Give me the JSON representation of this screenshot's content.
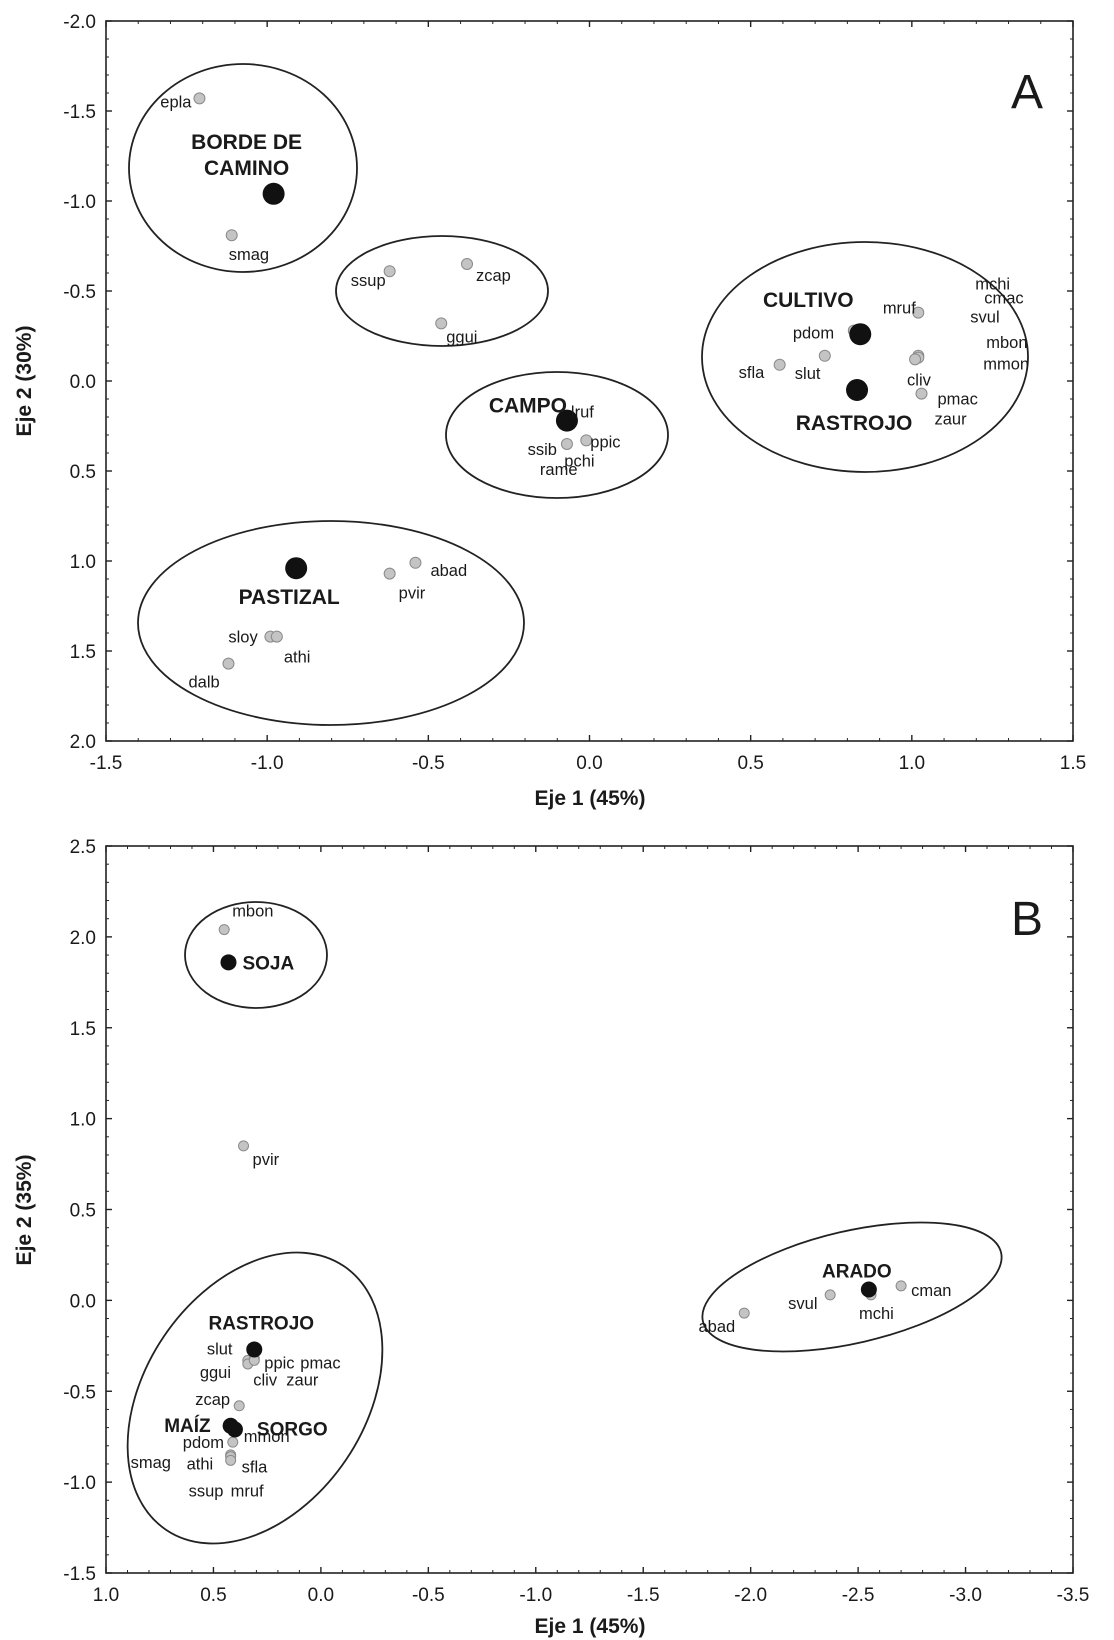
{
  "chart_data": [
    {
      "type": "scatter",
      "panel": "A",
      "xlabel": "Eje 1 (45%)",
      "ylabel": "Eje 2 (30%)",
      "xlim": [
        -1.5,
        1.5
      ],
      "ylim": [
        2.0,
        -2.0
      ],
      "y_axis_reversed": true,
      "x_ticks": [
        "-1.5",
        "-1.0",
        "-0.5",
        "0.0",
        "0.5",
        "1.0",
        "1.5"
      ],
      "y_ticks": [
        "-2.0",
        "-1.5",
        "-1.0",
        "-0.5",
        "0.0",
        "0.5",
        "1.0",
        "1.5",
        "2.0"
      ],
      "groups": [
        {
          "label": "BORDE DE CAMINO",
          "x": -0.98,
          "y": -1.04
        },
        {
          "label": "CAMPO",
          "x": -0.07,
          "y": 0.22
        },
        {
          "label": "CULTIVO",
          "x": 0.84,
          "y": -0.26
        },
        {
          "label": "RASTROJO",
          "x": 0.83,
          "y": 0.05
        },
        {
          "label": "PASTIZAL",
          "x": -0.91,
          "y": 1.04
        }
      ],
      "species": [
        {
          "label": "epla",
          "x": -1.21,
          "y": -1.57
        },
        {
          "label": "smag",
          "x": -1.11,
          "y": -0.81
        },
        {
          "label": "ssup",
          "x": -0.62,
          "y": -0.61
        },
        {
          "label": "zcap",
          "x": -0.38,
          "y": -0.65
        },
        {
          "label": "ggui",
          "x": -0.46,
          "y": -0.32
        },
        {
          "label": "lruf",
          "x": -0.07,
          "y": 0.22
        },
        {
          "label": "ppic",
          "x": -0.01,
          "y": 0.33
        },
        {
          "label": "ssib",
          "x": -0.07,
          "y": 0.35
        },
        {
          "label": "rame",
          "x": -0.07,
          "y": 0.35
        },
        {
          "label": "pchi",
          "x": -0.01,
          "y": 0.33
        },
        {
          "label": "abad",
          "x": -0.54,
          "y": 1.01
        },
        {
          "label": "pvir",
          "x": -0.62,
          "y": 1.07
        },
        {
          "label": "sloy",
          "x": -0.99,
          "y": 1.42
        },
        {
          "label": "athi",
          "x": -0.97,
          "y": 1.42
        },
        {
          "label": "dalb",
          "x": -1.12,
          "y": 1.57
        },
        {
          "label": "mruf",
          "x": 0.82,
          "y": -0.28
        },
        {
          "label": "mchi",
          "x": 1.02,
          "y": -0.38
        },
        {
          "label": "cmac",
          "x": 1.02,
          "y": -0.38
        },
        {
          "label": "pdom",
          "x": 0.82,
          "y": -0.28
        },
        {
          "label": "svul",
          "x": 1.02,
          "y": -0.38
        },
        {
          "label": "mbon",
          "x": 1.02,
          "y": -0.14
        },
        {
          "label": "mmon",
          "x": 1.02,
          "y": -0.13
        },
        {
          "label": "cliv",
          "x": 1.01,
          "y": -0.12
        },
        {
          "label": "sfla",
          "x": 0.59,
          "y": -0.09
        },
        {
          "label": "slut",
          "x": 0.73,
          "y": -0.14
        },
        {
          "label": "pmac",
          "x": 1.03,
          "y": 0.07
        },
        {
          "label": "zaur",
          "x": 1.03,
          "y": 0.07
        }
      ],
      "ellipses": [
        {
          "members": [
            "BORDE DE CAMINO",
            "epla",
            "smag"
          ]
        },
        {
          "members": [
            "ssup",
            "zcap",
            "ggui"
          ]
        },
        {
          "members": [
            "CAMPO",
            "lruf",
            "ppic",
            "ssib",
            "rame",
            "pchi"
          ]
        },
        {
          "members": [
            "CULTIVO",
            "RASTROJO",
            "mruf",
            "mchi",
            "cmac",
            "pdom",
            "svul",
            "mbon",
            "mmon",
            "cliv",
            "sfla",
            "slut",
            "pmac",
            "zaur"
          ]
        },
        {
          "members": [
            "PASTIZAL",
            "abad",
            "pvir",
            "sloy",
            "athi",
            "dalb"
          ]
        }
      ],
      "grid": false,
      "legend": "none"
    },
    {
      "type": "scatter",
      "panel": "B",
      "xlabel": "Eje 1 (45%)",
      "ylabel": "Eje 2 (35%)",
      "xlim": [
        1.0,
        -3.5
      ],
      "ylim": [
        -1.5,
        2.5
      ],
      "x_axis_reversed": true,
      "x_ticks": [
        "1.0",
        "0.5",
        "0.0",
        "-0.5",
        "-1.0",
        "-1.5",
        "-2.0",
        "-2.5",
        "-3.0",
        "-3.5"
      ],
      "y_ticks": [
        "2.5",
        "2.0",
        "1.5",
        "1.0",
        "0.5",
        "0.0",
        "-0.5",
        "-1.0",
        "-1.5"
      ],
      "groups": [
        {
          "label": "SOJA",
          "x": 0.43,
          "y": 1.86
        },
        {
          "label": "ARADO",
          "x": -2.55,
          "y": 0.06
        },
        {
          "label": "RASTROJO",
          "x": 0.31,
          "y": -0.27
        },
        {
          "label": "MAÍZ",
          "x": 0.42,
          "y": -0.69
        },
        {
          "label": "SORGO",
          "x": 0.4,
          "y": -0.71
        }
      ],
      "species": [
        {
          "label": "mbon",
          "x": 0.45,
          "y": 2.04
        },
        {
          "label": "pvir",
          "x": 0.36,
          "y": 0.85
        },
        {
          "label": "abad",
          "x": -1.97,
          "y": -0.07
        },
        {
          "label": "svul",
          "x": -2.37,
          "y": 0.03
        },
        {
          "label": "mchi",
          "x": -2.56,
          "y": 0.03
        },
        {
          "label": "cman",
          "x": -2.7,
          "y": 0.08
        },
        {
          "label": "slut",
          "x": 0.34,
          "y": -0.33
        },
        {
          "label": "ggui",
          "x": 0.34,
          "y": -0.35
        },
        {
          "label": "ppic",
          "x": 0.31,
          "y": -0.32
        },
        {
          "label": "pmac",
          "x": 0.31,
          "y": -0.32
        },
        {
          "label": "cliv",
          "x": 0.31,
          "y": -0.33
        },
        {
          "label": "zaur",
          "x": 0.31,
          "y": -0.33
        },
        {
          "label": "zcap",
          "x": 0.38,
          "y": -0.58
        },
        {
          "label": "pdom",
          "x": 0.41,
          "y": -0.78
        },
        {
          "label": "mmon",
          "x": 0.41,
          "y": -0.78
        },
        {
          "label": "smag",
          "x": 0.42,
          "y": -0.85
        },
        {
          "label": "athi",
          "x": 0.42,
          "y": -0.86
        },
        {
          "label": "sfla",
          "x": 0.42,
          "y": -0.88
        },
        {
          "label": "ssup",
          "x": 0.42,
          "y": -0.88
        },
        {
          "label": "mruf",
          "x": 0.42,
          "y": -0.88
        }
      ],
      "ellipses": [
        {
          "members": [
            "SOJA",
            "mbon"
          ]
        },
        {
          "members": [
            "ARADO",
            "abad",
            "svul",
            "mchi",
            "cman"
          ]
        },
        {
          "members": [
            "RASTROJO",
            "MAÍZ",
            "SORGO",
            "slut",
            "ggui",
            "ppic",
            "pmac",
            "cliv",
            "zaur",
            "zcap",
            "pdom",
            "mmon",
            "smag",
            "athi",
            "sfla",
            "ssup",
            "mruf"
          ]
        }
      ],
      "grid": false,
      "legend": "none"
    }
  ],
  "colors": {
    "group_marker": "#111111",
    "species_marker": "#c4c4c4",
    "species_stroke": "#8a8a8a",
    "ellipse": "#222222",
    "text": "#1a1a1a"
  }
}
